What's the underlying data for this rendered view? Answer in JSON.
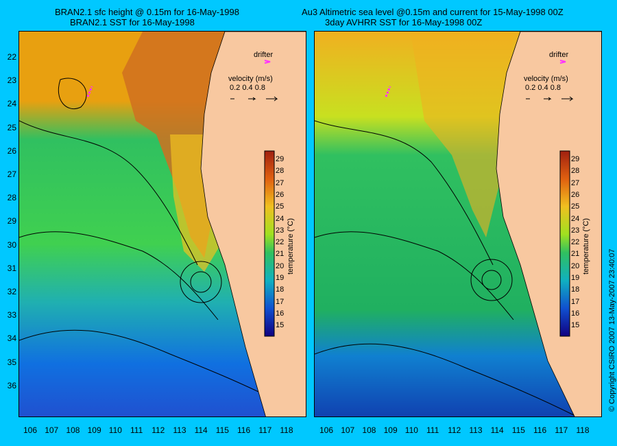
{
  "left_panel": {
    "title_line1": "BRAN2.1 sfc height @ 0.15m for 16-May-1998",
    "title_line2": "BRAN2.1 SST for 16-May-1998",
    "drifter_label": "drifter",
    "velocity_label": "velocity (m/s)",
    "velocity_scale": "0.2  0.4  0.8",
    "colorbar_title": "temperature (°C)"
  },
  "right_panel": {
    "title_line1": "Au3 Altimetric sea level  @0.15m and current for 15-May-1998 00Z",
    "title_line2": "3day AVHRR SST for 16-May-1998 00Z",
    "drifter_label": "drifter",
    "velocity_label": "velocity (m/s)",
    "velocity_scale": "0.2  0.4  0.8",
    "colorbar_title": "temperature (°C)"
  },
  "latitude_ticks": [
    "22",
    "23",
    "24",
    "25",
    "26",
    "27",
    "28",
    "29",
    "30",
    "31",
    "32",
    "33",
    "34",
    "35",
    "36"
  ],
  "longitude_ticks": [
    "106",
    "107",
    "108",
    "109",
    "110",
    "111",
    "112",
    "113",
    "114",
    "115",
    "116",
    "117",
    "118"
  ],
  "colorbar_ticks": [
    "29",
    "28",
    "27",
    "26",
    "25",
    "24",
    "23",
    "22",
    "21",
    "20",
    "19",
    "18",
    "17",
    "16",
    "15"
  ],
  "copyright": "© Copyright CSIRO 2007   13-May-2007 23:40:07",
  "colors": {
    "background": "#00c8ff",
    "land": "#f8c8a0",
    "drifter": "#ff33ff"
  }
}
